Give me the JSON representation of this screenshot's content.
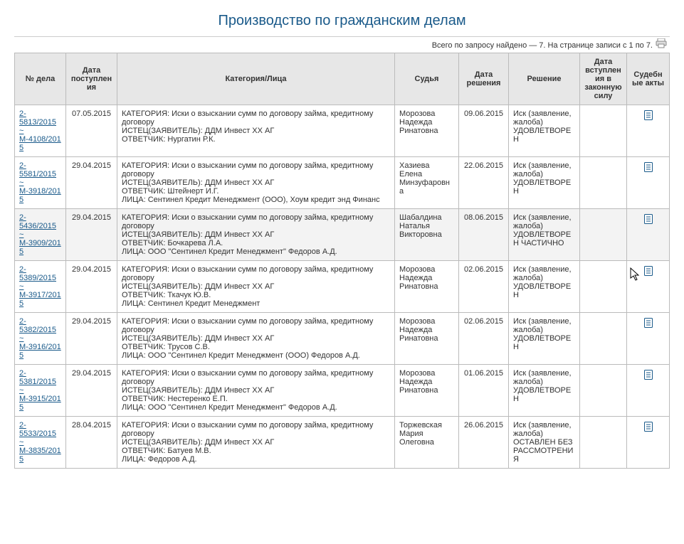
{
  "title": "Производство по гражданским делам",
  "summary": "Всего по запросу найдено — 7. На странице записи с 1 по 7.",
  "headers": {
    "case_no": "№ дела",
    "date_in": "Дата поступления",
    "category": "Категория/Лица",
    "judge": "Судья",
    "decision_date": "Дата решения",
    "decision": "Решение",
    "eff_date": "Дата вступления в законную силу",
    "acts": "Судебные акты"
  },
  "rows": [
    {
      "case_no": "2-5813/2015 ~ М-4108/2015",
      "date_in": "07.05.2015",
      "category": [
        "  КАТЕГОРИЯ: Иски о взыскании сумм по договору займа, кредитному договору",
        "ИСТЕЦ(ЗАЯВИТЕЛЬ): ДДМ Инвест ХХ АГ",
        "ОТВЕТЧИК: Нургатин Р.К."
      ],
      "judge": " Морозова Надежда Ринатовна",
      "decision_date": "09.06.2015",
      "decision": " Иск (заявление, жалоба) УДОВЛЕТВОРЕН",
      "eff_date": "",
      "has_act": true,
      "hover": false
    },
    {
      "case_no": "2-5581/2015 ~ М-3918/2015",
      "date_in": "29.04.2015",
      "category": [
        "  КАТЕГОРИЯ: Иски о взыскании сумм по договору займа, кредитному договору",
        "ИСТЕЦ(ЗАЯВИТЕЛЬ): ДДМ Инвест ХХ АГ",
        "ОТВЕТЧИК: Штейнерт И.Г.",
        "ЛИЦА: Сентинел Кредит Менеджмент (ООО), Хоум кредит энд Финанс"
      ],
      "judge": " Хазиева Елена Минзуфаровна",
      "decision_date": "22.06.2015",
      "decision": " Иск (заявление, жалоба) УДОВЛЕТВОРЕН",
      "eff_date": "",
      "has_act": true,
      "hover": false
    },
    {
      "case_no": "2-5436/2015 ~ М-3909/2015",
      "date_in": "29.04.2015",
      "category": [
        "  КАТЕГОРИЯ: Иски о взыскании сумм по договору займа, кредитному договору",
        "ИСТЕЦ(ЗАЯВИТЕЛЬ): ДДМ Инвест ХХ АГ",
        "ОТВЕТЧИК: Бочкарева Л.А.",
        "ЛИЦА: ООО \"Сентинел Кредит Менеджмент\" Федоров А.Д."
      ],
      "judge": " Шабалдина Наталья Викторовна",
      "decision_date": "08.06.2015",
      "decision": " Иск (заявление, жалоба) УДОВЛЕТВОРЕН ЧАСТИЧНО",
      "eff_date": "",
      "has_act": true,
      "hover": true
    },
    {
      "case_no": "2-5389/2015 ~ М-3917/2015",
      "date_in": "29.04.2015",
      "category": [
        "  КАТЕГОРИЯ: Иски о взыскании сумм по договору займа, кредитному договору",
        "ИСТЕЦ(ЗАЯВИТЕЛЬ): ДДМ Инвест ХХ АГ",
        "ОТВЕТЧИК: Ткачук Ю.В.",
        "ЛИЦА: Сентинел Кредит Менеджмент"
      ],
      "judge": " Морозова Надежда Ринатовна",
      "decision_date": "02.06.2015",
      "decision": " Иск (заявление, жалоба) УДОВЛЕТВОРЕН",
      "eff_date": "",
      "has_act": true,
      "hover": false
    },
    {
      "case_no": "2-5382/2015 ~ М-3916/2015",
      "date_in": "29.04.2015",
      "category": [
        "  КАТЕГОРИЯ: Иски о взыскании сумм по договору займа, кредитному договору",
        "ИСТЕЦ(ЗАЯВИТЕЛЬ): ДДМ Инвест ХХ АГ",
        "ОТВЕТЧИК: Трусов С.В.",
        "ЛИЦА: ООО \"Сентинел Кредит Менеджмент (ООО) Федоров А.Д."
      ],
      "judge": " Морозова Надежда Ринатовна",
      "decision_date": "02.06.2015",
      "decision": " Иск (заявление, жалоба) УДОВЛЕТВОРЕН",
      "eff_date": "",
      "has_act": true,
      "hover": false
    },
    {
      "case_no": "2-5381/2015 ~ М-3915/2015",
      "date_in": "29.04.2015",
      "category": [
        "  КАТЕГОРИЯ: Иски о взыскании сумм по договору займа, кредитному договору",
        "ИСТЕЦ(ЗАЯВИТЕЛЬ): ДДМ Инвест ХХ АГ",
        "ОТВЕТЧИК: Нестеренко Е.П.",
        "ЛИЦА: ООО \"Сентинел Кредит Менеджмент\" Федоров А.Д."
      ],
      "judge": " Морозова Надежда Ринатовна",
      "decision_date": "01.06.2015",
      "decision": " Иск (заявление, жалоба) УДОВЛЕТВОРЕН",
      "eff_date": "",
      "has_act": true,
      "hover": false
    },
    {
      "case_no": "2-5533/2015 ~ М-3835/2015",
      "date_in": "28.04.2015",
      "category": [
        "  КАТЕГОРИЯ: Иски о взыскании сумм по договору займа, кредитному договору",
        "ИСТЕЦ(ЗАЯВИТЕЛЬ): ДДМ Инвест ХХ АГ",
        "ОТВЕТЧИК: Батуев М.В.",
        "ЛИЦА: Федоров А.Д."
      ],
      "judge": " Торжевская Мария Олеговна",
      "decision_date": "26.06.2015",
      "decision": " Иск (заявление, жалоба) ОСТАВЛЕН БЕЗ РАССМОТРЕНИЯ",
      "eff_date": "",
      "has_act": true,
      "hover": false
    }
  ],
  "colors": {
    "link": "#1a5a8a",
    "header_bg": "#e7e7e7",
    "border": "#bbb",
    "hover_bg": "#f3f3f3"
  }
}
